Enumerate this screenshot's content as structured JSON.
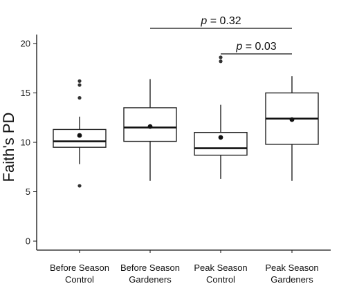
{
  "chart_data": {
    "type": "box",
    "title": "",
    "xlabel": "",
    "ylabel": "Faith's PD",
    "ylim": [
      0,
      21
    ],
    "yticks": [
      0,
      5,
      10,
      15,
      20
    ],
    "grid": false,
    "categories": [
      [
        "Before Season",
        "Control"
      ],
      [
        "Before Season",
        "Gardeners"
      ],
      [
        "Peak Season",
        "Control"
      ],
      [
        "Peak Season",
        "Gardeners"
      ]
    ],
    "boxes": [
      {
        "whisker_low": 7.8,
        "q1": 9.5,
        "median": 10.1,
        "q3": 11.3,
        "whisker_high": 12.6,
        "mean": 10.7,
        "outliers": [
          16.2,
          15.8,
          14.5,
          5.6
        ]
      },
      {
        "whisker_low": 6.1,
        "q1": 10.1,
        "median": 11.5,
        "q3": 13.5,
        "whisker_high": 16.4,
        "mean": 11.6,
        "outliers": []
      },
      {
        "whisker_low": 6.3,
        "q1": 8.7,
        "median": 9.4,
        "q3": 11.0,
        "whisker_high": 13.8,
        "mean": 10.5,
        "outliers": [
          18.6,
          18.2
        ]
      },
      {
        "whisker_low": 6.1,
        "q1": 9.8,
        "median": 12.4,
        "q3": 15.0,
        "whisker_high": 16.7,
        "mean": 12.3,
        "outliers": []
      }
    ],
    "annotations": [
      {
        "from": 2,
        "to": 4,
        "label": "p = 0.32"
      },
      {
        "from": 3,
        "to": 4,
        "label": "p = 0.03"
      }
    ]
  }
}
